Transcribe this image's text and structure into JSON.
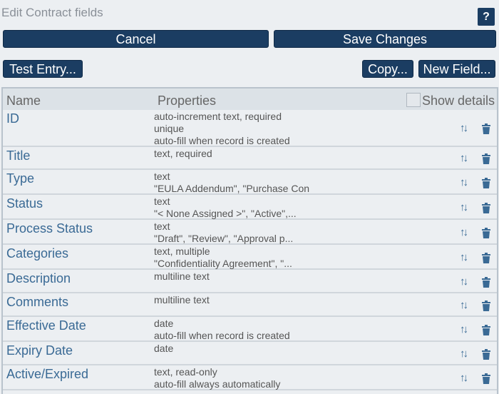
{
  "header": {
    "title": "Edit Contract fields",
    "help_label": "?"
  },
  "toolbar": {
    "cancel": "Cancel",
    "save": "Save Changes",
    "test_entry": "Test Entry...",
    "copy": "Copy...",
    "new_field": "New Field..."
  },
  "table": {
    "col_name": "Name",
    "col_properties": "Properties",
    "show_details": "Show details",
    "rows": [
      {
        "name": "ID",
        "props": [
          "auto-increment text, required",
          "unique",
          "auto-fill when record is created"
        ]
      },
      {
        "name": "Title",
        "props": [
          "text, required"
        ]
      },
      {
        "name": "Type",
        "props": [
          "text",
          "\"EULA Addendum\", \"Purchase Con"
        ]
      },
      {
        "name": "Status",
        "props": [
          "text",
          "\"< None Assigned >\", \"Active\",..."
        ]
      },
      {
        "name": "Process Status",
        "props": [
          "text",
          "\"Draft\", \"Review\", \"Approval p..."
        ]
      },
      {
        "name": "Categories",
        "props": [
          "text, multiple",
          "\"Confidentiality Agreement\", \"..."
        ]
      },
      {
        "name": "Description",
        "props": [
          "multiline text"
        ]
      },
      {
        "name": "Comments",
        "props": [
          "multiline text"
        ]
      },
      {
        "name": "Effective Date",
        "props": [
          "date",
          "auto-fill when record is created"
        ]
      },
      {
        "name": "Expiry Date",
        "props": [
          "date"
        ]
      },
      {
        "name": "Active/Expired",
        "props": [
          "text, read-only",
          "auto-fill always automatically"
        ]
      }
    ]
  },
  "colors": {
    "button": "#1b3d62",
    "name_text": "#3a6a95",
    "background": "#eceff2"
  }
}
